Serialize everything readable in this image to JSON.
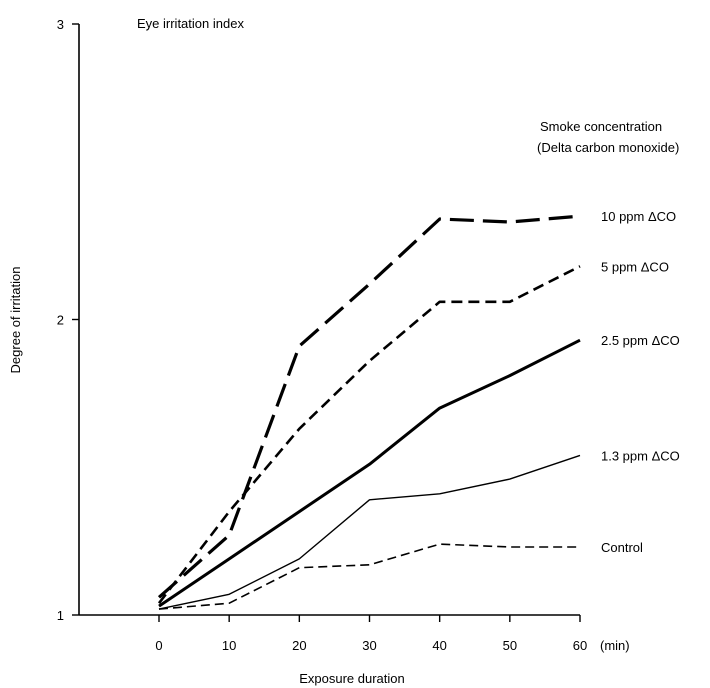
{
  "chart_data": {
    "type": "line",
    "title": "Eye irritation index",
    "xlabel": "Exposure duration",
    "ylabel": "Degree of irritation",
    "x_unit": "(min)",
    "x": [
      0,
      10,
      20,
      30,
      40,
      50,
      60
    ],
    "x_ticks": [
      "0",
      "10",
      "20",
      "30",
      "40",
      "50",
      "60"
    ],
    "y_ticks": [
      "1",
      "2",
      "3"
    ],
    "xlim": [
      0,
      60
    ],
    "ylim": [
      1,
      3
    ],
    "grid": false,
    "legend_title": [
      "Smoke concentration",
      "(Delta carbon monoxide)"
    ],
    "series": [
      {
        "name": "10 ppm ΔCO",
        "style": "long-dash",
        "values": [
          1.06,
          1.27,
          1.91,
          2.12,
          2.34,
          2.33,
          2.35
        ]
      },
      {
        "name": "5 ppm ΔCO",
        "style": "dash",
        "values": [
          1.04,
          1.35,
          1.63,
          1.86,
          2.06,
          2.06,
          2.18
        ]
      },
      {
        "name": "2.5 ppm ΔCO",
        "style": "thick-solid",
        "values": [
          1.03,
          1.19,
          1.35,
          1.51,
          1.7,
          1.81,
          1.93
        ]
      },
      {
        "name": "1.3 ppm ΔCO",
        "style": "thin-solid",
        "values": [
          1.02,
          1.07,
          1.19,
          1.39,
          1.41,
          1.46,
          1.54
        ]
      },
      {
        "name": "Control",
        "style": "short-dash",
        "values": [
          1.02,
          1.04,
          1.16,
          1.17,
          1.24,
          1.23,
          1.23
        ]
      }
    ]
  }
}
